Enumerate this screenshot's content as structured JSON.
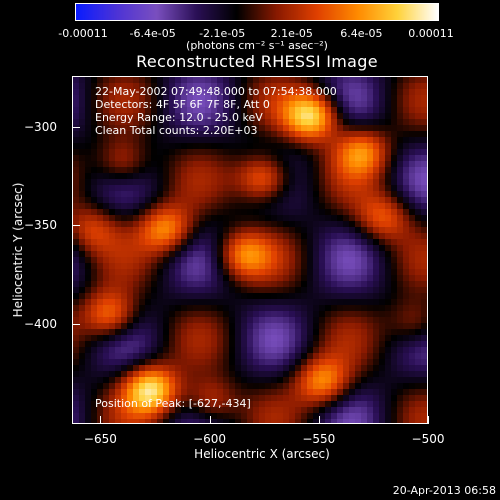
{
  "colorbar": {
    "ticks": [
      "-0.00011",
      "-6.4e-05",
      "-2.1e-05",
      "2.1e-05",
      "6.4e-05",
      "0.00011"
    ],
    "units": "(photons cm⁻² s⁻¹ asec⁻²)",
    "colors": [
      "#0a1cff",
      "#4d33d6",
      "#7a4fbf",
      "#2a0f55",
      "#000000",
      "#8a1a00",
      "#e04000",
      "#ff8a00",
      "#ffd23a",
      "#ffffff"
    ]
  },
  "chart_data": {
    "type": "heatmap",
    "title": "Reconstructed RHESSI Image",
    "xlabel": "Heliocentric X (arcsec)",
    "ylabel": "Heliocentric Y (arcsec)",
    "xlim": [
      -663,
      -500
    ],
    "ylim": [
      -451,
      -274
    ],
    "xticks": [
      -650,
      -600,
      -550,
      -500
    ],
    "yticks": [
      -300,
      -350,
      -400
    ],
    "zlim": [
      -0.00011,
      0.00011
    ],
    "info": [
      "22-May-2002 07:49:48.000 to 07:54:38.000",
      "Detectors: 4F 5F 6F 7F 8F, Att 0",
      "Energy Range: 12.0 - 25.0 keV",
      "Clean     Total counts: 2.20E+03"
    ],
    "peak_label": "Position of Peak: [-627,-434]",
    "peak": [
      -627,
      -434
    ],
    "sources": [
      {
        "x": -553,
        "y": -294,
        "flux": 0.00011
      },
      {
        "x": -575,
        "y": -326,
        "flux": 9e-05
      },
      {
        "x": -620,
        "y": -352,
        "flux": 8e-05
      },
      {
        "x": -585,
        "y": -365,
        "flux": 7e-05
      },
      {
        "x": -640,
        "y": -318,
        "flux": 6e-05
      },
      {
        "x": -520,
        "y": -346,
        "flux": 6e-05
      },
      {
        "x": -646,
        "y": -396,
        "flux": 8e-05
      },
      {
        "x": -627,
        "y": -434,
        "flux": 0.00011
      },
      {
        "x": -548,
        "y": -430,
        "flux": 8e-05
      },
      {
        "x": -505,
        "y": -400,
        "flux": 5e-05
      },
      {
        "x": -600,
        "y": -440,
        "flux": 6e-05
      },
      {
        "x": -655,
        "y": -352,
        "flux": 5e-05
      },
      {
        "x": -530,
        "y": -312,
        "flux": 7e-05
      }
    ]
  },
  "timestamp": "20-Apr-2013 06:58"
}
